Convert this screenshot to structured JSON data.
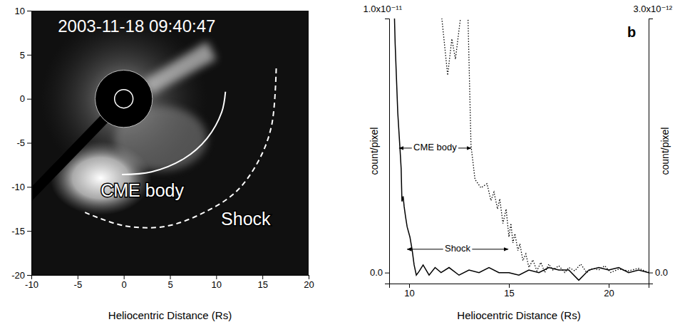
{
  "chart_data": [
    {
      "type": "image",
      "title": "2003-11-18 09:40:47",
      "xlabel": "Heliocentric Distance (Rs)",
      "xlim": [
        -10,
        20
      ],
      "ylim": [
        -20,
        10
      ],
      "xticks": [
        -10,
        -5,
        0,
        5,
        10,
        15,
        20
      ],
      "yticks": [
        -20,
        -15,
        -10,
        -5,
        0,
        5,
        10
      ],
      "shock_front": {
        "x": [
          -4.2,
          0,
          4.4,
          8.5,
          12.1,
          14.6,
          16,
          16.5
        ],
        "y": [
          -12.9,
          -14.4,
          -14.5,
          -13,
          -10.6,
          -7,
          -3,
          3.7
        ],
        "line_style": "dashed",
        "color": "#ffffff"
      },
      "cme_front": {
        "x": [
          -0.2,
          3,
          6.5,
          9,
          10.6,
          11
        ],
        "y": [
          -8.6,
          -8.3,
          -6.8,
          -4.5,
          -1.5,
          0.8
        ],
        "line_style": "solid",
        "color": "#ffffff"
      },
      "annotations": [
        {
          "text": "CME body",
          "x": 2,
          "y": -10.6
        },
        {
          "text": "Shock",
          "x": 13.2,
          "y": -13.8
        }
      ]
    },
    {
      "type": "line",
      "panel_label": "b",
      "xlabel": "Heliocentric Distance (Rs)",
      "ylabel": "count/pixel",
      "y2label": "count/pixel",
      "xlim": [
        9,
        22
      ],
      "xticks": [
        10,
        15,
        20
      ],
      "ylim": [
        -4.3e-13,
        1e-11
      ],
      "yticks": [
        {
          "value": 0,
          "label": "0.0"
        },
        {
          "value": 1e-11,
          "label": "1.0x10⁻¹¹"
        }
      ],
      "y2lim": [
        -1.3e-13,
        3e-12
      ],
      "y2ticks": [
        {
          "value": 0,
          "label": "0.0"
        },
        {
          "value": 3e-12,
          "label": "3.0x10⁻¹²"
        }
      ],
      "series": [
        {
          "color": "#000000",
          "line_style": "solid",
          "x": [
            9.2,
            9.3,
            9.43,
            9.54,
            9.6,
            9.64,
            9.7,
            9.75,
            9.82,
            9.9,
            10.04,
            10.15,
            10.25,
            10.36,
            10.5,
            10.7,
            11,
            11.3,
            11.6,
            12,
            12.5,
            13,
            13.5,
            14,
            14.5,
            15,
            15.5,
            16,
            16.5,
            17,
            17.5,
            18,
            18.5,
            19,
            19.5,
            20,
            20.5,
            21,
            21.5,
            22
          ],
          "values": [
            1.2e-11,
            9e-12,
            6.3e-12,
            4.9e-12,
            4.1e-12,
            2.8e-12,
            3e-12,
            2.6e-12,
            2.2e-12,
            1.8e-12,
            1.4e-12,
            9e-13,
            3e-13,
            -1e-13,
            5e-14,
            3e-13,
            -1e-13,
            2e-13,
            0,
            2e-13,
            -1e-13,
            1e-13,
            0,
            2e-13,
            0,
            0,
            -1e-13,
            1e-13,
            0,
            2e-13,
            1e-13,
            1e-13,
            -3e-13,
            1e-13,
            2e-13,
            1e-13,
            2e-13,
            0,
            1e-13,
            0
          ]
        },
        {
          "color": "#000000",
          "line_style": "dotted",
          "axis": "y2",
          "x": [
            11.3,
            11.4,
            11.64,
            11.93,
            12.14,
            12.32,
            12.57,
            12.75,
            12.95,
            13.1,
            13.3,
            13.6,
            13.9,
            14.1,
            14.25,
            14.43,
            14.54,
            14.7,
            14.86,
            15.0,
            15.1,
            15.2,
            15.3,
            15.45,
            15.55,
            15.7,
            15.85,
            16.0,
            16.2,
            16.4,
            16.6,
            16.8,
            17.0,
            17.2,
            17.5,
            17.8,
            18.0,
            18.3,
            18.6,
            18.9,
            19.2,
            19.5,
            19.8,
            20.1,
            20.5,
            21,
            21.5,
            22
          ],
          "values": [
            3.4e-12,
            3.3e-12,
            3e-12,
            2.33e-12,
            2.76e-12,
            2.52e-12,
            3e-12,
            3.3e-12,
            3e-12,
            1.5e-12,
            1.1e-12,
            1e-12,
            1.05e-12,
            8.5e-13,
            9.5e-13,
            7.5e-13,
            8.7e-13,
            5.8e-13,
            7.5e-13,
            4.2e-13,
            5.8e-13,
            3.5e-13,
            4.6e-13,
            2.6e-13,
            3.4e-13,
            1.4e-13,
            2.2e-13,
            6e-14,
            1.5e-13,
            2e-14,
            1.2e-13,
            0,
            1e-13,
            3e-14,
            8e-14,
            0,
            6e-14,
            2e-14,
            1e-13,
            0,
            5e-14,
            3e-14,
            8e-14,
            0,
            4e-14,
            2e-14,
            5e-14,
            0
          ]
        }
      ],
      "annotations": [
        {
          "text": "CME body",
          "x": [
            9.5,
            13.1
          ],
          "y": 4.9e-12
        },
        {
          "text": "Shock",
          "x": [
            9.9,
            14.96
          ],
          "y": 9.2e-13
        }
      ]
    }
  ]
}
